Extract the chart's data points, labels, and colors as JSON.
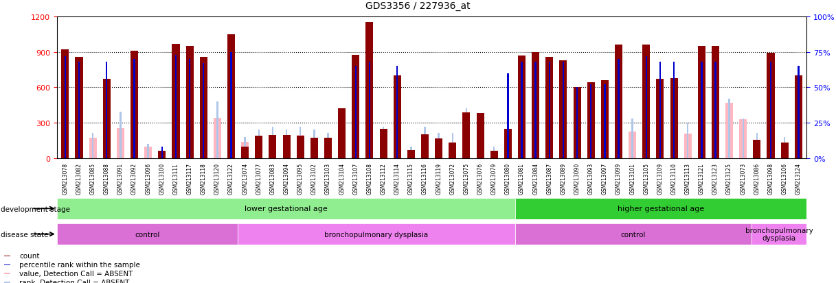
{
  "title": "GDS3356 / 227936_at",
  "samples": [
    "GSM213078",
    "GSM213082",
    "GSM213085",
    "GSM213088",
    "GSM213091",
    "GSM213092",
    "GSM213096",
    "GSM213100",
    "GSM213111",
    "GSM213117",
    "GSM213118",
    "GSM213120",
    "GSM213122",
    "GSM213074",
    "GSM213077",
    "GSM213083",
    "GSM213094",
    "GSM213095",
    "GSM213102",
    "GSM213103",
    "GSM213104",
    "GSM213107",
    "GSM213108",
    "GSM213112",
    "GSM213114",
    "GSM213115",
    "GSM213116",
    "GSM213119",
    "GSM213072",
    "GSM213075",
    "GSM213076",
    "GSM213079",
    "GSM213080",
    "GSM213081",
    "GSM213084",
    "GSM213087",
    "GSM213089",
    "GSM213090",
    "GSM213093",
    "GSM213097",
    "GSM213099",
    "GSM213101",
    "GSM213105",
    "GSM213109",
    "GSM213110",
    "GSM213113",
    "GSM213121",
    "GSM213123",
    "GSM213125",
    "GSM213073",
    "GSM213086",
    "GSM213098",
    "GSM213106",
    "GSM213124"
  ],
  "count": [
    920,
    855,
    0,
    670,
    0,
    910,
    0,
    65,
    970,
    950,
    855,
    0,
    1050,
    100,
    190,
    195,
    195,
    190,
    175,
    175,
    420,
    875,
    1150,
    250,
    700,
    70,
    200,
    170,
    130,
    390,
    380,
    60,
    250,
    870,
    900,
    855,
    830,
    600,
    645,
    660,
    960,
    0,
    960,
    670,
    680,
    0,
    950,
    950,
    0,
    0,
    155,
    890,
    130,
    700
  ],
  "count_absent": [
    0,
    0,
    175,
    0,
    255,
    0,
    100,
    0,
    0,
    0,
    0,
    340,
    0,
    140,
    185,
    195,
    185,
    195,
    175,
    170,
    410,
    0,
    0,
    245,
    0,
    65,
    195,
    160,
    130,
    390,
    380,
    55,
    245,
    0,
    0,
    0,
    0,
    0,
    0,
    0,
    0,
    225,
    0,
    0,
    0,
    210,
    0,
    0,
    470,
    330,
    155,
    0,
    130,
    0
  ],
  "rank": [
    72,
    68,
    0,
    68,
    0,
    70,
    0,
    8,
    73,
    70,
    67,
    0,
    75,
    0,
    0,
    0,
    0,
    0,
    0,
    0,
    0,
    65,
    68,
    0,
    65,
    0,
    0,
    0,
    0,
    0,
    0,
    0,
    60,
    68,
    68,
    68,
    68,
    50,
    52,
    52,
    70,
    0,
    72,
    68,
    68,
    0,
    68,
    68,
    0,
    0,
    0,
    68,
    0,
    65
  ],
  "rank_absent": [
    0,
    0,
    18,
    0,
    33,
    0,
    10,
    0,
    0,
    0,
    0,
    40,
    0,
    15,
    20,
    22,
    20,
    22,
    20,
    18,
    33,
    0,
    0,
    22,
    0,
    8,
    22,
    18,
    18,
    35,
    32,
    8,
    28,
    0,
    0,
    0,
    0,
    0,
    0,
    0,
    0,
    28,
    0,
    0,
    0,
    25,
    0,
    0,
    42,
    28,
    18,
    0,
    15,
    0
  ],
  "development_stage_groups": [
    {
      "label": "lower gestational age",
      "start": 0,
      "end": 33,
      "color": "#90ee90"
    },
    {
      "label": "higher gestational age",
      "start": 33,
      "end": 54,
      "color": "#32cd32"
    }
  ],
  "disease_state_groups": [
    {
      "label": "control",
      "start": 0,
      "end": 13,
      "color": "#da70d6"
    },
    {
      "label": "bronchopulmonary dysplasia",
      "start": 13,
      "end": 33,
      "color": "#ee82ee"
    },
    {
      "label": "control",
      "start": 33,
      "end": 50,
      "color": "#da70d6"
    },
    {
      "label": "bronchopulmonary\ndysplasia",
      "start": 50,
      "end": 54,
      "color": "#ee82ee"
    }
  ],
  "ylim_left": [
    0,
    1200
  ],
  "ylim_right": [
    0,
    100
  ],
  "yticks_left": [
    0,
    300,
    600,
    900,
    1200
  ],
  "yticks_right": [
    0,
    25,
    50,
    75,
    100
  ],
  "bar_color_present": "#8b0000",
  "bar_color_absent": "#ffb6c1",
  "rank_color_present": "#0000cd",
  "rank_color_absent": "#aec6e8",
  "tick_bg_color": "#d3d3d3",
  "legend_items": [
    {
      "label": "count",
      "color": "#8b0000"
    },
    {
      "label": "percentile rank within the sample",
      "color": "#0000cd"
    },
    {
      "label": "value, Detection Call = ABSENT",
      "color": "#ffb6c1"
    },
    {
      "label": "rank, Detection Call = ABSENT",
      "color": "#aec6e8"
    }
  ]
}
